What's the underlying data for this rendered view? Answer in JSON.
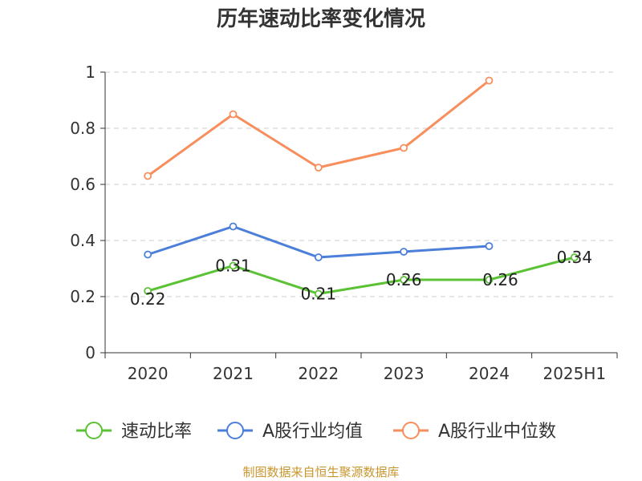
{
  "chart_data": {
    "type": "line",
    "title": "历年速动比率变化情况",
    "categories": [
      "2020",
      "2021",
      "2022",
      "2023",
      "2024",
      "2025H1"
    ],
    "ylim": [
      0,
      1
    ],
    "yticks": [
      "0",
      "0.2",
      "0.4",
      "0.6",
      "0.8",
      "1"
    ],
    "grid": true,
    "legend_position": "bottom",
    "series": [
      {
        "name": "速动比率",
        "color": "#5bc236",
        "values": [
          0.22,
          0.31,
          0.21,
          0.26,
          0.26,
          0.34
        ],
        "labels": [
          "0.22",
          "0.31",
          "0.21",
          "0.26",
          "0.26",
          "0.34"
        ]
      },
      {
        "name": "A股行业均值",
        "color": "#4b7fd9",
        "values": [
          0.35,
          0.45,
          0.34,
          0.36,
          0.38,
          null
        ]
      },
      {
        "name": "A股行业中位数",
        "color": "#f78e5c",
        "values": [
          0.63,
          0.85,
          0.66,
          0.73,
          0.97,
          null
        ]
      }
    ]
  },
  "source": "制图数据来自恒生聚源数据库"
}
